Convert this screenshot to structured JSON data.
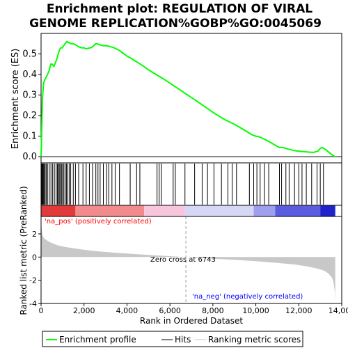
{
  "chart_data": {
    "type": "line",
    "title_lines": [
      "Enrichment plot: REGULATION OF VIRAL",
      "GENOME REPLICATION%GOBP%GO:0045069"
    ],
    "es_panel": {
      "ylabel": "Enrichment score (ES)",
      "ylim": [
        -0.03,
        0.6
      ],
      "yticks": [
        0.0,
        0.1,
        0.2,
        0.3,
        0.4,
        0.5
      ],
      "ytick_labels": [
        "0.0",
        "0.1",
        "0.2",
        "0.3",
        "0.4",
        "0.5"
      ],
      "grid": false,
      "series": [
        {
          "name": "Enrichment profile",
          "color": "#00ff00",
          "x": [
            0,
            30,
            60,
            120,
            200,
            300,
            380,
            450,
            520,
            600,
            680,
            750,
            800,
            860,
            920,
            980,
            1050,
            1120,
            1200,
            1300,
            1400,
            1500,
            1600,
            1750,
            1900,
            2000,
            2100,
            2200,
            2300,
            2400,
            2500,
            2550,
            2650,
            2800,
            2950,
            3050,
            3150,
            3250,
            3400,
            3600,
            3800,
            4000,
            4200,
            4400,
            4600,
            4800,
            5000,
            5200,
            5400,
            5600,
            5800,
            6000,
            6200,
            6400,
            6600,
            6800,
            7000,
            7200,
            7400,
            7600,
            7800,
            8000,
            8200,
            8400,
            8600,
            8800,
            9000,
            9200,
            9400,
            9600,
            9800,
            10000,
            10100,
            10200,
            10300,
            10400,
            10600,
            10800,
            11000,
            11100,
            11200,
            11300,
            11500,
            11700,
            11900,
            12100,
            12300,
            12500,
            12700,
            12900,
            13000,
            13100,
            13200,
            13300,
            13400,
            13500,
            13600,
            13700
          ],
          "y": [
            0.0,
            0.12,
            0.28,
            0.36,
            0.38,
            0.4,
            0.42,
            0.45,
            0.45,
            0.44,
            0.46,
            0.48,
            0.5,
            0.52,
            0.53,
            0.53,
            0.54,
            0.55,
            0.56,
            0.555,
            0.55,
            0.55,
            0.545,
            0.535,
            0.53,
            0.53,
            0.525,
            0.528,
            0.53,
            0.535,
            0.545,
            0.55,
            0.548,
            0.542,
            0.54,
            0.54,
            0.538,
            0.535,
            0.53,
            0.52,
            0.505,
            0.49,
            0.478,
            0.465,
            0.452,
            0.438,
            0.423,
            0.41,
            0.397,
            0.385,
            0.372,
            0.358,
            0.344,
            0.33,
            0.316,
            0.302,
            0.288,
            0.274,
            0.26,
            0.245,
            0.231,
            0.216,
            0.203,
            0.19,
            0.178,
            0.168,
            0.158,
            0.146,
            0.134,
            0.121,
            0.108,
            0.1,
            0.098,
            0.095,
            0.09,
            0.085,
            0.074,
            0.062,
            0.05,
            0.045,
            0.045,
            0.044,
            0.037,
            0.032,
            0.028,
            0.026,
            0.024,
            0.022,
            0.021,
            0.028,
            0.04,
            0.045,
            0.038,
            0.03,
            0.022,
            0.013,
            0.005,
            0.0
          ]
        }
      ]
    },
    "hits_panel": {
      "hit_positions": [
        15,
        45,
        80,
        110,
        150,
        190,
        240,
        300,
        380,
        460,
        540,
        620,
        700,
        760,
        810,
        850,
        900,
        950,
        1000,
        1060,
        1120,
        1180,
        1240,
        1310,
        1380,
        1500,
        1600,
        1750,
        1950,
        2100,
        2250,
        2400,
        2550,
        2650,
        2750,
        2900,
        3050,
        3150,
        3300,
        3450,
        3650,
        4150,
        4450,
        4600,
        5400,
        5500,
        5600,
        6150,
        6250,
        6700,
        7150,
        7500,
        7750,
        8050,
        8400,
        8700,
        8900,
        9100,
        9700,
        9900,
        10050,
        10200,
        10400,
        10600,
        11100,
        11200,
        11400,
        11550,
        11800,
        12000,
        12150,
        12350,
        12600,
        12850,
        13000,
        13150
      ]
    },
    "color_bar": {
      "label_pos": "'na_pos' (positively correlated)",
      "label_neg": "'na_neg' (negatively correlated)",
      "pos_color": "#ff0000",
      "neg_color": "#0000ff",
      "segments": [
        {
          "from": 0,
          "to": 1600,
          "color": "#e23a3a"
        },
        {
          "from": 1600,
          "to": 4800,
          "color": "#f28b8b"
        },
        {
          "from": 4800,
          "to": 6700,
          "color": "#f7c6dd"
        },
        {
          "from": 6700,
          "to": 9900,
          "color": "#d6d6f5"
        },
        {
          "from": 9900,
          "to": 10900,
          "color": "#9f9ff0"
        },
        {
          "from": 10900,
          "to": 13000,
          "color": "#5c5ce0"
        },
        {
          "from": 13000,
          "to": 13700,
          "color": "#2222cc"
        }
      ]
    },
    "metric_panel": {
      "ylabel": "Ranked list metric (PreRanked)",
      "ylim": [
        -4,
        3.5
      ],
      "yticks": [
        -4,
        -2,
        0,
        2
      ],
      "ytick_labels": [
        "-4",
        "-2",
        "0",
        "2"
      ],
      "zero_cross_label": "Zero cross at 6743",
      "zero_cross": 6743,
      "fill_color": "#c8c8c8",
      "x": [
        0,
        20,
        60,
        150,
        300,
        500,
        800,
        1200,
        1800,
        2500,
        3500,
        4500,
        5500,
        6743,
        8000,
        9000,
        10000,
        11000,
        11800,
        12300,
        12700,
        13000,
        13200,
        13350,
        13450,
        13550,
        13620,
        13680,
        13700
      ],
      "y": [
        3.3,
        2.6,
        1.9,
        1.6,
        1.4,
        1.2,
        1.0,
        0.85,
        0.68,
        0.52,
        0.36,
        0.24,
        0.12,
        0.0,
        -0.14,
        -0.24,
        -0.36,
        -0.5,
        -0.64,
        -0.78,
        -0.92,
        -1.06,
        -1.2,
        -1.38,
        -1.55,
        -1.8,
        -2.2,
        -3.0,
        -3.8
      ]
    },
    "xaxis": {
      "xlabel": "Rank in Ordered Dataset",
      "xlim": [
        0,
        14000
      ],
      "xticks": [
        0,
        2000,
        4000,
        6000,
        8000,
        10000,
        12000,
        14000
      ],
      "xtick_labels": [
        "0",
        "2,000",
        "4,000",
        "6,000",
        "8,000",
        "10,000",
        "12,000",
        "14,000"
      ]
    },
    "legend": {
      "placement": "bottom",
      "entries": [
        {
          "label": "Enrichment profile",
          "color": "#00ff00"
        },
        {
          "label": "Hits",
          "color": "#000000"
        },
        {
          "label": "Ranking metric scores",
          "color": "#c8c8c8"
        }
      ]
    }
  }
}
